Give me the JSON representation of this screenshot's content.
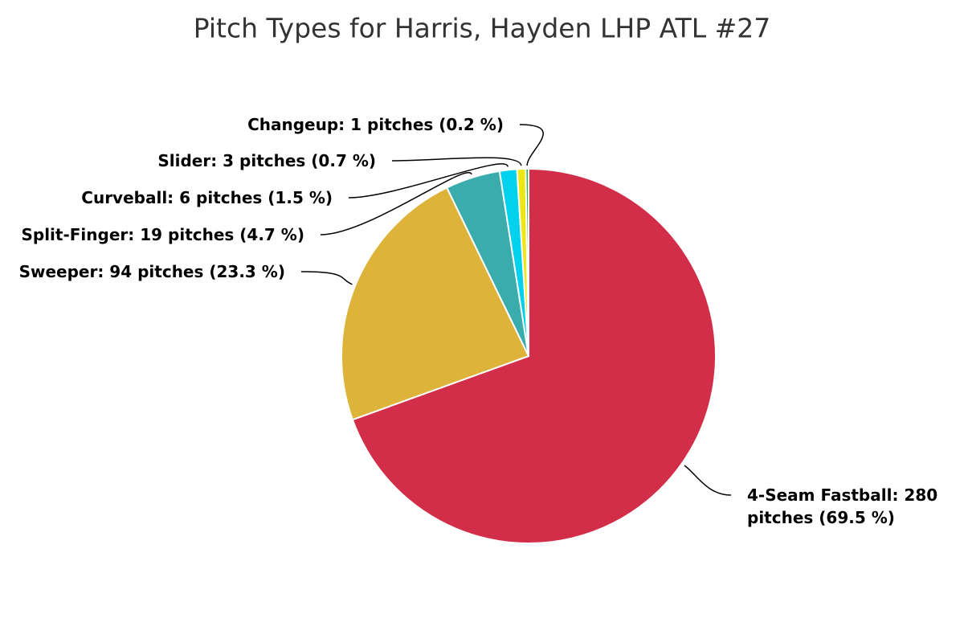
{
  "chart_data": {
    "type": "pie",
    "title": "Pitch Types for Harris, Hayden LHP ATL #27",
    "values": [
      280,
      94,
      19,
      6,
      3,
      1
    ],
    "value_labels": [
      "4-Seam Fastball: 280 pitches (69.5 %)",
      "Sweeper: 94 pitches (23.3 %)",
      "Split-Finger: 19 pitches (4.7 %)",
      "Curveball: 6 pitches (1.5 %)",
      "Slider: 3 pitches (0.7 %)",
      "Changeup: 1 pitches (0.2 %)"
    ],
    "colors": [
      "#d22d49",
      "#ddb33a",
      "#3bacac",
      "#00d1ed",
      "#eee716",
      "#1dbe3a"
    ]
  }
}
